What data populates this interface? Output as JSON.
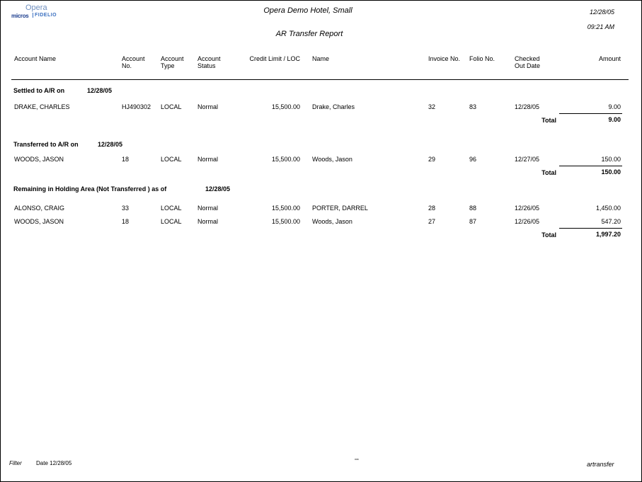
{
  "header": {
    "logo_top": "Opera",
    "logo_left": "micros",
    "logo_right": "FIDELIO",
    "hotel": "Opera Demo Hotel, Small",
    "date": "12/28/05",
    "time": "09:21 AM",
    "title": "AR Transfer Report"
  },
  "columns": {
    "account_name": "Account Name",
    "account_no_1": "Account",
    "account_no_2": "No.",
    "account_type_1": "Account",
    "account_type_2": "Type",
    "account_status_1": "Account",
    "account_status_2": "Status",
    "credit_limit": "Credit Limit / LOC",
    "name": "Name",
    "invoice_no": "Invoice No.",
    "folio_no": "Folio No.",
    "checked_out_1": "Checked",
    "checked_out_2": "Out Date",
    "amount": "Amount"
  },
  "sections": [
    {
      "label": "Settled  to A/R on",
      "date": "12/28/05",
      "rows": [
        {
          "account_name": "DRAKE, CHARLES",
          "account_no": "HJ490302",
          "type": "LOCAL",
          "status": "Normal",
          "credit": "15,500.00",
          "name": "Drake, Charles",
          "invoice": "32",
          "folio": "83",
          "checked_out": "12/28/05",
          "amount": "9.00"
        }
      ],
      "total_label": "Total",
      "total": "9.00"
    },
    {
      "label": "Transferred to A/R on",
      "date": "12/28/05",
      "rows": [
        {
          "account_name": "WOODS, JASON",
          "account_no": "18",
          "type": "LOCAL",
          "status": "Normal",
          "credit": "15,500.00",
          "name": "Woods, Jason",
          "invoice": "29",
          "folio": "96",
          "checked_out": "12/27/05",
          "amount": "150.00"
        }
      ],
      "total_label": "Total",
      "total": "150.00"
    },
    {
      "label": "Remaining in Holding Area (Not Transferred ) as of",
      "date": "12/28/05",
      "rows": [
        {
          "account_name": "ALONSO, CRAIG",
          "account_no": "33",
          "type": "LOCAL",
          "status": "Normal",
          "credit": "15,500.00",
          "name": "PORTER, DARREL",
          "invoice": "28",
          "folio": "88",
          "checked_out": "12/26/05",
          "amount": "1,450.00"
        },
        {
          "account_name": "WOODS, JASON",
          "account_no": "18",
          "type": "LOCAL",
          "status": "Normal",
          "credit": "15,500.00",
          "name": "Woods, Jason",
          "invoice": "27",
          "folio": "87",
          "checked_out": "12/26/05",
          "amount": "547.20"
        }
      ],
      "total_label": "Total",
      "total": "1,997.20"
    }
  ],
  "footer": {
    "filter_label": "Filter",
    "filter_value": "Date 12/28/05",
    "page_marker": "***",
    "report_name": "artransfer"
  }
}
